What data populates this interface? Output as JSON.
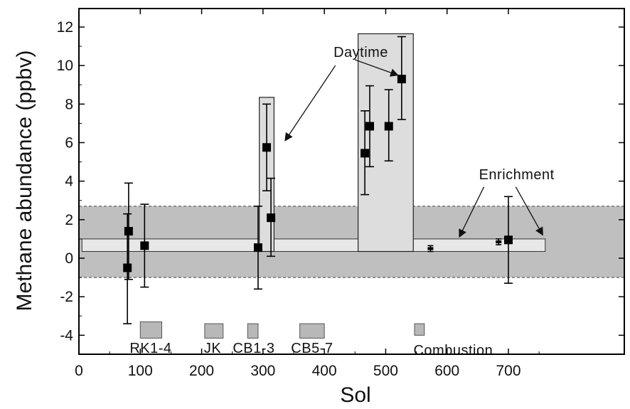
{
  "chart_data": {
    "type": "scatter",
    "xlabel": "Sol",
    "ylabel": "Methane abundance (ppbv)",
    "xlim": [
      0,
      760
    ],
    "ylim": [
      -5,
      13
    ],
    "xticks": [
      0,
      100,
      200,
      300,
      400,
      500,
      600,
      700
    ],
    "yticks": [
      -4,
      -2,
      0,
      2,
      4,
      6,
      8,
      10,
      12
    ],
    "grid": false,
    "series": [
      {
        "marker": "square",
        "color": "#000000",
        "points": [
          {
            "x": 79,
            "y": -0.5,
            "lo": -3.4,
            "hi": 2.3
          },
          {
            "x": 81,
            "y": 1.4,
            "lo": -1.1,
            "hi": 3.9
          },
          {
            "x": 107,
            "y": 0.65,
            "lo": -1.5,
            "hi": 2.8
          },
          {
            "x": 292,
            "y": 0.55,
            "lo": -1.6,
            "hi": 2.7
          },
          {
            "x": 306,
            "y": 5.75,
            "lo": 3.5,
            "hi": 8.0
          },
          {
            "x": 313,
            "y": 2.1,
            "lo": 0.1,
            "hi": 4.15
          },
          {
            "x": 466,
            "y": 5.45,
            "lo": 3.3,
            "hi": 7.65
          },
          {
            "x": 474,
            "y": 6.85,
            "lo": 4.75,
            "hi": 8.95
          },
          {
            "x": 505,
            "y": 6.85,
            "lo": 5.05,
            "hi": 8.75
          },
          {
            "x": 526,
            "y": 9.3,
            "lo": 7.2,
            "hi": 11.5
          },
          {
            "x": 700,
            "y": 0.95,
            "lo": -1.3,
            "hi": 3.2
          }
        ]
      },
      {
        "marker": "bar",
        "color": "#000000",
        "points": [
          {
            "x": 573,
            "y": 0.5,
            "lo": 0.35,
            "hi": 0.65
          },
          {
            "x": 684,
            "y": 0.85,
            "lo": 0.7,
            "hi": 1.0
          }
        ]
      }
    ],
    "bands": [
      {
        "y0": -1.0,
        "y1": 2.7,
        "fill": "#bfbfbf",
        "border": "dashed"
      },
      {
        "x0": 5,
        "x1": 760,
        "y0": 0.35,
        "y1": 1.0,
        "fill": "#e8e8e8",
        "border": "solid"
      }
    ],
    "boxes": [
      {
        "x0": 294,
        "x1": 318,
        "y0": 0.35,
        "y1": 8.35
      },
      {
        "x0": 455,
        "x1": 545,
        "y0": 0.35,
        "y1": 11.65
      }
    ],
    "campaigns": [
      {
        "label": "RK1-4",
        "x0": 100,
        "x1": 135,
        "y0": -4.15,
        "y1": -3.3,
        "label_x": 117,
        "label_y": -4.4
      },
      {
        "label": "JK",
        "x0": 205,
        "x1": 235,
        "y0": -4.15,
        "y1": -3.4,
        "label_x": 218,
        "label_y": -4.4
      },
      {
        "label": "CB1-3",
        "x0": 275,
        "x1": 292,
        "y0": -4.15,
        "y1": -3.4,
        "label_x": 285,
        "label_y": -4.4
      },
      {
        "label": "CB5-7",
        "x0": 360,
        "x1": 400,
        "y0": -4.15,
        "y1": -3.4,
        "label_x": 380,
        "label_y": -4.4
      },
      {
        "label": "Combustion",
        "x0": 547,
        "x1": 563,
        "y0": -4.0,
        "y1": -3.4,
        "label_x": 610,
        "label_y": -4.5
      }
    ],
    "annotations": [
      {
        "text": "Daytime",
        "x": 415,
        "y": 10.45
      },
      {
        "text": "Enrichment",
        "x": 652,
        "y": 4.1
      }
    ],
    "arrows": [
      {
        "from": [
          418,
          10.0
        ],
        "to": [
          336,
          6.1
        ]
      },
      {
        "from": [
          450,
          10.3
        ],
        "to": [
          520,
          9.5
        ]
      },
      {
        "from": [
          660,
          3.7
        ],
        "to": [
          620,
          1.1
        ]
      },
      {
        "from": [
          712,
          3.7
        ],
        "to": [
          756,
          1.2
        ]
      }
    ]
  }
}
